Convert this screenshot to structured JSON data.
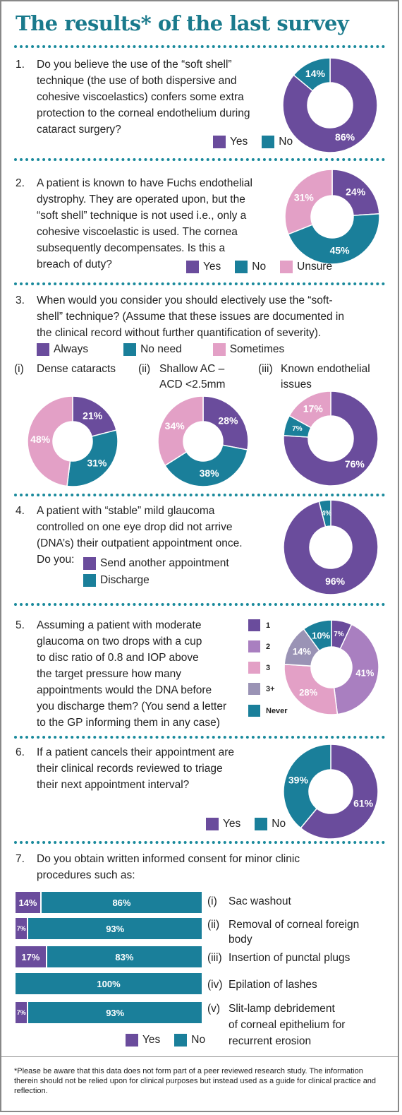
{
  "title": "The results* of the last survey",
  "colors": {
    "purple": "#6a4c9c",
    "teal": "#1a7f9a",
    "pink": "#e3a0c6",
    "light_purple": "#a97fc0",
    "grey_purple": "#9a93b5",
    "accent": "#1a7a8c"
  },
  "q1": {
    "num": "1.",
    "lines": [
      "Do you believe the use of the “soft shell”",
      "technique (the use of both dispersive and",
      "cohesive viscoelastics) confers some extra",
      "protection to the corneal endothelium during",
      "cataract surgery?"
    ],
    "legend": [
      "Yes",
      "No"
    ]
  },
  "q2": {
    "num": "2.",
    "lines": [
      "A patient is known to have Fuchs endothelial",
      "dystrophy. They are operated upon, but the",
      "“soft shell” technique is not used i.e., only a",
      "cohesive viscoelastic is used. The cornea",
      "subsequently decompensates. Is this a",
      "breach of duty?"
    ],
    "legend": [
      "Yes",
      "No",
      "Unsure"
    ]
  },
  "q3": {
    "num": "3.",
    "lines": [
      "When would you consider you should electively use the “soft-",
      "shell” technique? (Assume that these issues are documented in",
      "the clinical record without further quantification of severity)."
    ],
    "legend": [
      "Always",
      "No need",
      "Sometimes"
    ],
    "sub": [
      {
        "roman": "(i)",
        "label": [
          "Dense cataracts"
        ]
      },
      {
        "roman": "(ii)",
        "label": [
          "Shallow AC –",
          "ACD <2.5mm"
        ]
      },
      {
        "roman": "(iii)",
        "label": [
          "Known endothelial",
          "issues"
        ]
      }
    ]
  },
  "q4": {
    "num": "4.",
    "lines": [
      "A patient with “stable” mild glaucoma",
      "controlled on one eye drop did not arrive",
      "(DNA’s) their outpatient appointment once.",
      "Do you:"
    ],
    "legend": [
      "Send another appointment",
      "Discharge"
    ]
  },
  "q5": {
    "num": "5.",
    "lines": [
      "Assuming a patient with moderate",
      "glaucoma on two drops with a cup",
      "to disc ratio of 0.8 and IOP above",
      "the target pressure how many",
      "appointments would the DNA before",
      "you discharge them? (You send a letter",
      "to the GP informing them in any case)"
    ],
    "legend": [
      "1",
      "2",
      "3",
      "3+",
      "Never"
    ]
  },
  "q6": {
    "num": "6.",
    "lines": [
      "If a patient cancels their appointment are",
      "their clinical records reviewed to triage",
      "their next appointment interval?"
    ],
    "legend": [
      "Yes",
      "No"
    ]
  },
  "q7": {
    "num": "7.",
    "lines": [
      "Do you obtain written informed consent for minor clinic",
      "procedures such as:"
    ],
    "legend": [
      "Yes",
      "No"
    ],
    "items": [
      {
        "roman": "(i)",
        "label": [
          "Sac washout"
        ]
      },
      {
        "roman": "(ii)",
        "label": [
          "Removal of corneal foreign",
          "body"
        ]
      },
      {
        "roman": "(iii)",
        "label": [
          "Insertion of punctal plugs"
        ]
      },
      {
        "roman": "(iv)",
        "label": [
          "Epilation of lashes"
        ]
      },
      {
        "roman": "(v)",
        "label": [
          "Slit-lamp debridement",
          "of corneal epithelium for",
          "recurrent erosion"
        ]
      }
    ]
  },
  "footnote": "*Please be aware that this data does not form part of a peer reviewed research study. The information therein should not be relied upon for clinical purposes but instead used as a guide for clinical practice and reflection.",
  "chart_data": [
    {
      "type": "pie",
      "id": "q1",
      "categories": [
        "Yes",
        "No"
      ],
      "values": [
        86,
        14
      ],
      "labels": [
        "86%",
        "14%"
      ],
      "colors": [
        "#6a4c9c",
        "#1a7f9a"
      ]
    },
    {
      "type": "pie",
      "id": "q2",
      "categories": [
        "Yes",
        "No",
        "Unsure"
      ],
      "values": [
        24,
        45,
        31
      ],
      "labels": [
        "24%",
        "45%",
        "31%"
      ],
      "colors": [
        "#6a4c9c",
        "#1a7f9a",
        "#e3a0c6"
      ]
    },
    {
      "type": "pie",
      "id": "q3i",
      "categories": [
        "Always",
        "No need",
        "Sometimes"
      ],
      "values": [
        21,
        31,
        48
      ],
      "labels": [
        "21%",
        "31%",
        "48%"
      ],
      "colors": [
        "#6a4c9c",
        "#1a7f9a",
        "#e3a0c6"
      ]
    },
    {
      "type": "pie",
      "id": "q3ii",
      "categories": [
        "Always",
        "No need",
        "Sometimes"
      ],
      "values": [
        28,
        38,
        34
      ],
      "labels": [
        "28%",
        "38%",
        "34%"
      ],
      "colors": [
        "#6a4c9c",
        "#1a7f9a",
        "#e3a0c6"
      ]
    },
    {
      "type": "pie",
      "id": "q3iii",
      "categories": [
        "Always",
        "No need",
        "Sometimes"
      ],
      "values": [
        76,
        7,
        17
      ],
      "labels": [
        "76%",
        "7%",
        "17%"
      ],
      "colors": [
        "#6a4c9c",
        "#1a7f9a",
        "#e3a0c6"
      ]
    },
    {
      "type": "pie",
      "id": "q4",
      "categories": [
        "Send another appointment",
        "Discharge"
      ],
      "values": [
        96,
        4
      ],
      "labels": [
        "96%",
        "4%"
      ],
      "colors": [
        "#6a4c9c",
        "#1a7f9a"
      ]
    },
    {
      "type": "pie",
      "id": "q5",
      "categories": [
        "1",
        "2",
        "3",
        "3+",
        "Never"
      ],
      "values": [
        7,
        41,
        28,
        14,
        10
      ],
      "labels": [
        "7%",
        "41%",
        "28%",
        "14%",
        "10%"
      ],
      "colors": [
        "#6a4c9c",
        "#a97fc0",
        "#e3a0c6",
        "#9a93b5",
        "#1a7f9a"
      ]
    },
    {
      "type": "pie",
      "id": "q6",
      "categories": [
        "Yes",
        "No"
      ],
      "values": [
        61,
        39
      ],
      "labels": [
        "61%",
        "39%"
      ],
      "colors": [
        "#6a4c9c",
        "#1a7f9a"
      ]
    },
    {
      "type": "bar",
      "id": "q7",
      "stacked": true,
      "horizontal": true,
      "categories": [
        "Sac washout",
        "Removal of corneal foreign body",
        "Insertion of punctal plugs",
        "Epilation of lashes",
        "Slit-lamp debridement of corneal epithelium for recurrent erosion"
      ],
      "series": [
        {
          "name": "Yes",
          "values": [
            14,
            7,
            17,
            0,
            7
          ]
        },
        {
          "name": "No",
          "values": [
            86,
            93,
            83,
            100,
            93
          ]
        }
      ],
      "labels": [
        [
          "14%",
          "86%"
        ],
        [
          "7%",
          "93%"
        ],
        [
          "17%",
          "83%"
        ],
        [
          "",
          "100%"
        ],
        [
          "7%",
          "93%"
        ]
      ]
    }
  ]
}
